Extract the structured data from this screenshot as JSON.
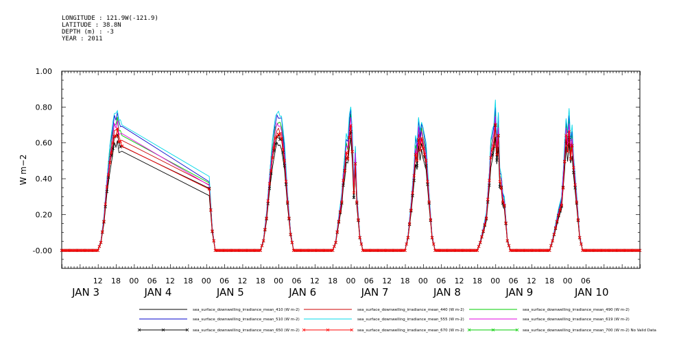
{
  "header": {
    "longitude": "LONGITUDE : 121.9W(-121.9)",
    "latitude": "LATITUDE : 38.8N",
    "depth": "DEPTH (m) : -3",
    "year": "YEAR : 2011"
  },
  "chart_data": {
    "type": "line",
    "title": "",
    "ylabel": "W m-2",
    "ylim": [
      -0.1,
      1.0
    ],
    "y_ticks": [
      "-0.00",
      "0.20",
      "0.40",
      "0.60",
      "0.80",
      "1.00"
    ],
    "y_tick_values": [
      0.0,
      0.2,
      0.4,
      0.6,
      0.8,
      1.0
    ],
    "x_hour_ticks": [
      "12",
      "18",
      "00",
      "06",
      "12",
      "18",
      "00",
      "06",
      "12",
      "18",
      "00",
      "06",
      "12",
      "18",
      "00",
      "06",
      "12",
      "18",
      "00",
      "06",
      "12",
      "18",
      "00",
      "06",
      "12",
      "18",
      "00",
      "06"
    ],
    "x_day_labels": [
      "JAN  3",
      "JAN  4",
      "JAN  5",
      "JAN  6",
      "JAN  7",
      "JAN  8",
      "JAN  9",
      "JAN 10"
    ],
    "xlim_hours": [
      0,
      192
    ],
    "x_units": "hours since JAN 3 00:00, 2011",
    "series": [
      {
        "name": "sea_surface_downwelling_irradiance_mean_410 (W m-2)",
        "color": "#000000",
        "scale": 0.82,
        "marker": "none",
        "legend": "sea_surface_downwelling_irradiance_mean_410 (W m-2)"
      },
      {
        "name": "sea_surface_downwelling_irradiance_mean_440 (W m-2)",
        "color": "#cc0000",
        "scale": 0.93,
        "marker": "none",
        "legend": "sea_surface_downwelling_irradiance_mean_440 (W m-2)"
      },
      {
        "name": "sea_surface_downwelling_irradiance_mean_490 (W m-2)",
        "color": "#00cc00",
        "scale": 0.99,
        "marker": "none",
        "legend": "sea_surface_downwelling_irradiance_mean_490 (W m-2)"
      },
      {
        "name": "sea_surface_downwelling_irradiance_mean_510 (W m-2)",
        "color": "#0000cc",
        "scale": 1.04,
        "marker": "none",
        "legend": "sea_surface_downwelling_irradiance_mean_510 (W m-2)"
      },
      {
        "name": "sea_surface_downwelling_irradiance_mean_555 (W m-2)",
        "color": "#00d8e8",
        "scale": 1.07,
        "marker": "none",
        "legend": "sea_surface_downwelling_irradiance_mean_555 (W m-2)"
      },
      {
        "name": "sea_surface_downwelling_irradiance_mean_619 (W m-2)",
        "color": "#e000e0",
        "scale": 0.97,
        "marker": "none",
        "legend": "sea_surface_downwelling_irradiance_mean_619 (W m-2)"
      },
      {
        "name": "sea_surface_downwelling_irradiance_mean_650 (W m-2)",
        "color": "#000000",
        "scale": 0.88,
        "marker": "x",
        "legend": "sea_surface_downwelling_irradiance_mean_650 (W m-2)"
      },
      {
        "name": "sea_surface_downwelling_irradiance_mean_670 (W m-2)",
        "color": "#ff0000",
        "scale": 0.9,
        "marker": "x",
        "legend": "sea_surface_downwelling_irradiance_mean_670 (W m-2)"
      },
      {
        "name": "sea_surface_downwelling_irradiance_mean_700 (W m-2) No Valid Data",
        "color": "#00cc00",
        "scale": 0,
        "marker": "x",
        "legend": "sea_surface_downwelling_irradiance_mean_700 (W m-2) No Valid Data"
      }
    ],
    "base_profile": [
      [
        0,
        0
      ],
      [
        12,
        0
      ],
      [
        13,
        0.05
      ],
      [
        14,
        0.18
      ],
      [
        15,
        0.38
      ],
      [
        16,
        0.55
      ],
      [
        17,
        0.66
      ],
      [
        17.5,
        0.72
      ],
      [
        18,
        0.71
      ],
      [
        18.5,
        0.74
      ],
      [
        19,
        0.68
      ],
      [
        19.5,
        0.67
      ],
      [
        20,
        0.66
      ],
      [
        49,
        0.38
      ],
      [
        50,
        0.12
      ],
      [
        51,
        0
      ],
      [
        66,
        0
      ],
      [
        67,
        0.06
      ],
      [
        68,
        0.2
      ],
      [
        69,
        0.4
      ],
      [
        70,
        0.58
      ],
      [
        71,
        0.69
      ],
      [
        71.5,
        0.72
      ],
      [
        72,
        0.72
      ],
      [
        72.5,
        0.71
      ],
      [
        73,
        0.7
      ],
      [
        74,
        0.55
      ],
      [
        75,
        0.3
      ],
      [
        76,
        0.1
      ],
      [
        77,
        0
      ],
      [
        90,
        0
      ],
      [
        91,
        0.05
      ],
      [
        92,
        0.18
      ],
      [
        93,
        0.3
      ],
      [
        93.5,
        0.42
      ],
      [
        94,
        0.5
      ],
      [
        94.5,
        0.6
      ],
      [
        95,
        0.58
      ],
      [
        95.5,
        0.7
      ],
      [
        96,
        0.76
      ],
      [
        96.5,
        0.62
      ],
      [
        97,
        0.35
      ],
      [
        97.5,
        0.55
      ],
      [
        98,
        0.3
      ],
      [
        99,
        0.08
      ],
      [
        100,
        0
      ],
      [
        114,
        0
      ],
      [
        115,
        0.08
      ],
      [
        116,
        0.25
      ],
      [
        117,
        0.45
      ],
      [
        117.5,
        0.6
      ],
      [
        118,
        0.55
      ],
      [
        118.5,
        0.7
      ],
      [
        119,
        0.62
      ],
      [
        119.5,
        0.68
      ],
      [
        120,
        0.64
      ],
      [
        121,
        0.55
      ],
      [
        122,
        0.3
      ],
      [
        123,
        0.08
      ],
      [
        124,
        0
      ],
      [
        138,
        0
      ],
      [
        139,
        0.05
      ],
      [
        140,
        0.12
      ],
      [
        141,
        0.2
      ],
      [
        142,
        0.42
      ],
      [
        142.5,
        0.58
      ],
      [
        143,
        0.62
      ],
      [
        143.5,
        0.66
      ],
      [
        144,
        0.78
      ],
      [
        144.5,
        0.58
      ],
      [
        145,
        0.72
      ],
      [
        145.5,
        0.42
      ],
      [
        146,
        0.4
      ],
      [
        146.5,
        0.3
      ],
      [
        147,
        0.28
      ],
      [
        148,
        0.06
      ],
      [
        149,
        0
      ],
      [
        162,
        0
      ],
      [
        163,
        0.06
      ],
      [
        164,
        0.14
      ],
      [
        165,
        0.22
      ],
      [
        166,
        0.28
      ],
      [
        166.5,
        0.4
      ],
      [
        167,
        0.55
      ],
      [
        167.5,
        0.7
      ],
      [
        168,
        0.62
      ],
      [
        168.5,
        0.73
      ],
      [
        169,
        0.58
      ],
      [
        169.5,
        0.65
      ],
      [
        170,
        0.5
      ],
      [
        171,
        0.3
      ],
      [
        172,
        0.08
      ],
      [
        173,
        0
      ],
      [
        192,
        0
      ]
    ]
  }
}
